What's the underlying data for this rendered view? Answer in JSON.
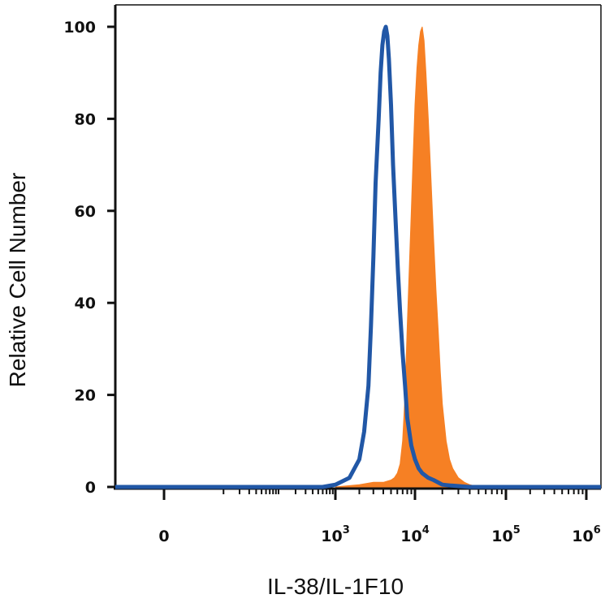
{
  "chart_data": {
    "type": "area",
    "title": "",
    "xlabel": "IL-38/IL-1F10",
    "ylabel": "Relative Cell Number",
    "xscale": "log (biexponential)",
    "ylim": [
      0,
      100
    ],
    "yticks": [
      0,
      20,
      40,
      60,
      80,
      100
    ],
    "xticks": [
      {
        "value": 0,
        "base": "0",
        "exp": ""
      },
      {
        "value": 1000,
        "base": "10",
        "exp": "3"
      },
      {
        "value": 10000,
        "base": "10",
        "exp": "4"
      },
      {
        "value": 100000,
        "base": "10",
        "exp": "5"
      },
      {
        "value": 1000000,
        "base": "10",
        "exp": "6"
      }
    ],
    "grid": false,
    "legend": "none",
    "series": [
      {
        "style": "line",
        "color": "#2157a6",
        "x": [
          600,
          1000,
          1500,
          2000,
          2300,
          2600,
          2800,
          3000,
          3200,
          3500,
          3700,
          3900,
          4100,
          4300,
          4500,
          4700,
          5000,
          5300,
          5700,
          6100,
          6500,
          7000,
          7500,
          8000,
          9000,
          10000,
          11000,
          12000,
          14000,
          16000,
          20000,
          25000,
          40000
        ],
        "y": [
          0,
          0.5,
          2,
          6,
          12,
          22,
          35,
          50,
          66,
          80,
          90,
          96,
          99,
          100,
          98,
          93,
          83,
          70,
          58,
          47,
          38,
          29,
          22,
          15,
          9,
          6,
          4,
          3,
          2,
          1.5,
          0.5,
          0.3,
          0
        ]
      },
      {
        "style": "filled",
        "color": "#f68024",
        "x": [
          1000,
          2000,
          3000,
          4000,
          5000,
          5500,
          6000,
          6500,
          7000,
          7500,
          8000,
          8500,
          9000,
          9500,
          10000,
          10500,
          11000,
          11500,
          12000,
          12600,
          13200,
          14000,
          15000,
          16000,
          17000,
          18000,
          19000,
          20000,
          22000,
          24000,
          26000,
          30000,
          35000,
          40000,
          50000
        ],
        "y": [
          0,
          0.5,
          1,
          1,
          1.5,
          2,
          3,
          5,
          10,
          20,
          35,
          48,
          60,
          72,
          83,
          91,
          96,
          99,
          100,
          97,
          90,
          80,
          67,
          54,
          43,
          34,
          25,
          18,
          10,
          6,
          4,
          2,
          1,
          0.5,
          0
        ]
      }
    ]
  }
}
